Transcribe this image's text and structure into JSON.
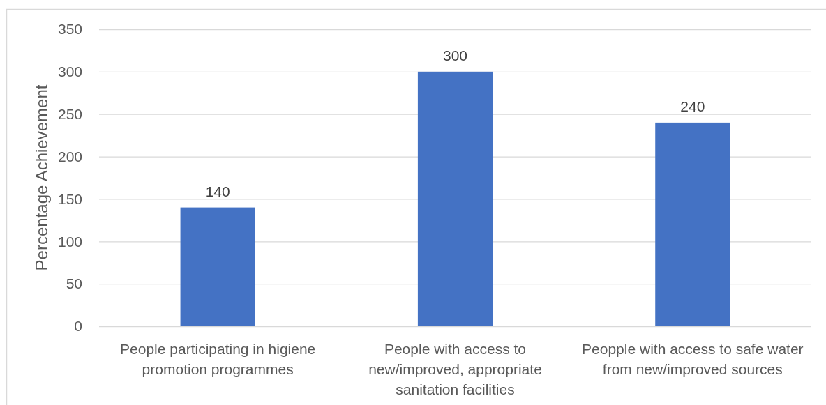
{
  "chart_data": {
    "type": "bar",
    "ylabel": "Percentage Achievement",
    "categories": [
      "People participating in higiene promotion programmes",
      "People with access to new/improved, appropriate sanitation facilities",
      "Peopple with access to safe water from new/improved sources"
    ],
    "values": [
      140,
      300,
      240
    ],
    "color": "#4472c4",
    "ylim": [
      0,
      350
    ],
    "yticks": [
      0,
      50,
      100,
      150,
      200,
      250,
      300,
      350
    ],
    "grid": "y",
    "data_labels": true
  }
}
